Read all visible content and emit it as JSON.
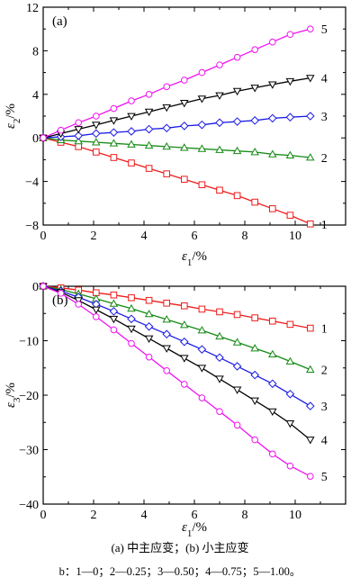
{
  "chart_data": [
    {
      "type": "line",
      "panel_label": "(a)",
      "xlabel": "ε1/%",
      "ylabel": "ε2/%",
      "xlim": [
        0,
        12
      ],
      "ylim": [
        -8,
        12
      ],
      "xticks": [
        "0",
        "2",
        "4",
        "6",
        "8",
        "10"
      ],
      "yticks": [
        "-8",
        "-4",
        "0",
        "4",
        "8",
        "12"
      ],
      "series": [
        {
          "name": "1",
          "color": "#ee1c1c",
          "marker": "square",
          "x": [
            0,
            0.7,
            1.4,
            2.1,
            2.8,
            3.5,
            4.2,
            4.9,
            5.6,
            6.3,
            7.0,
            7.7,
            8.4,
            9.1,
            9.8,
            10.6
          ],
          "y": [
            0,
            -0.4,
            -0.8,
            -1.3,
            -1.8,
            -2.3,
            -2.8,
            -3.3,
            -3.8,
            -4.3,
            -4.8,
            -5.3,
            -5.9,
            -6.5,
            -7.1,
            -7.9
          ]
        },
        {
          "name": "2",
          "color": "#138a13",
          "marker": "triangle-up",
          "x": [
            0,
            0.7,
            1.4,
            2.1,
            2.8,
            3.5,
            4.2,
            4.9,
            5.6,
            6.3,
            7.0,
            7.7,
            8.4,
            9.1,
            9.8,
            10.6
          ],
          "y": [
            0,
            -0.2,
            -0.3,
            -0.4,
            -0.5,
            -0.6,
            -0.7,
            -0.8,
            -0.9,
            -1.0,
            -1.1,
            -1.2,
            -1.3,
            -1.5,
            -1.6,
            -1.8
          ]
        },
        {
          "name": "3",
          "color": "#1a1ae6",
          "marker": "diamond",
          "x": [
            0,
            0.7,
            1.4,
            2.1,
            2.8,
            3.5,
            4.2,
            4.9,
            5.6,
            6.3,
            7.0,
            7.7,
            8.4,
            9.1,
            9.8,
            10.6
          ],
          "y": [
            0,
            0.1,
            0.2,
            0.4,
            0.5,
            0.6,
            0.8,
            0.9,
            1.1,
            1.2,
            1.4,
            1.5,
            1.6,
            1.8,
            1.9,
            2.0
          ]
        },
        {
          "name": "4",
          "color": "#000000",
          "marker": "triangle-down",
          "x": [
            0,
            0.7,
            1.4,
            2.1,
            2.8,
            3.5,
            4.2,
            4.9,
            5.6,
            6.3,
            7.0,
            7.7,
            8.4,
            9.1,
            9.8,
            10.6
          ],
          "y": [
            0,
            0.4,
            0.8,
            1.2,
            1.6,
            2.0,
            2.4,
            2.8,
            3.2,
            3.6,
            3.9,
            4.3,
            4.6,
            4.9,
            5.2,
            5.5
          ]
        },
        {
          "name": "5",
          "color": "#f013f0",
          "marker": "circle",
          "x": [
            0,
            0.7,
            1.4,
            2.1,
            2.8,
            3.5,
            4.2,
            4.9,
            5.6,
            6.3,
            7.0,
            7.7,
            8.4,
            9.1,
            9.8,
            10.6
          ],
          "y": [
            0,
            0.7,
            1.4,
            2.0,
            2.7,
            3.4,
            4.0,
            4.7,
            5.3,
            6.0,
            6.7,
            7.4,
            8.1,
            8.8,
            9.5,
            10.0
          ]
        }
      ]
    },
    {
      "type": "line",
      "panel_label": "(b)",
      "xlabel": "ε1/%",
      "ylabel": "ε3/%",
      "xlim": [
        0,
        12
      ],
      "ylim": [
        -40,
        0
      ],
      "xticks": [
        "0",
        "2",
        "4",
        "6",
        "8",
        "10"
      ],
      "yticks": [
        "-40",
        "-30",
        "-20",
        "-10",
        "0"
      ],
      "series": [
        {
          "name": "1",
          "color": "#ee1c1c",
          "marker": "square",
          "x": [
            0,
            0.7,
            1.4,
            2.1,
            2.8,
            3.5,
            4.2,
            4.9,
            5.6,
            6.3,
            7.0,
            7.7,
            8.4,
            9.1,
            9.8,
            10.6
          ],
          "y": [
            0,
            -0.3,
            -0.7,
            -1.2,
            -1.6,
            -2.1,
            -2.6,
            -3.1,
            -3.6,
            -4.2,
            -4.7,
            -5.2,
            -5.8,
            -6.4,
            -7.0,
            -7.7
          ]
        },
        {
          "name": "2",
          "color": "#138a13",
          "marker": "triangle-up",
          "x": [
            0,
            0.7,
            1.4,
            2.1,
            2.8,
            3.5,
            4.2,
            4.9,
            5.6,
            6.3,
            7.0,
            7.7,
            8.4,
            9.1,
            9.8,
            10.6
          ],
          "y": [
            0,
            -0.6,
            -1.4,
            -2.3,
            -3.2,
            -4.1,
            -5.1,
            -6.1,
            -7.1,
            -8.1,
            -9.2,
            -10.3,
            -11.4,
            -12.5,
            -13.8,
            -15.3
          ]
        },
        {
          "name": "3",
          "color": "#1a1ae6",
          "marker": "diamond",
          "x": [
            0,
            0.7,
            1.4,
            2.1,
            2.8,
            3.5,
            4.2,
            4.9,
            5.6,
            6.3,
            7.0,
            7.7,
            8.4,
            9.1,
            9.8,
            10.6
          ],
          "y": [
            0,
            -0.9,
            -2.0,
            -3.3,
            -4.6,
            -6.0,
            -7.4,
            -8.8,
            -10.2,
            -11.6,
            -13.1,
            -14.7,
            -16.3,
            -17.9,
            -19.8,
            -22.0
          ]
        },
        {
          "name": "4",
          "color": "#000000",
          "marker": "triangle-down",
          "x": [
            0,
            0.7,
            1.4,
            2.1,
            2.8,
            3.5,
            4.2,
            4.9,
            5.6,
            6.3,
            7.0,
            7.7,
            8.4,
            9.1,
            9.8,
            10.6
          ],
          "y": [
            0,
            -1.1,
            -2.6,
            -4.3,
            -6.0,
            -7.8,
            -9.6,
            -11.4,
            -13.2,
            -15.0,
            -17.0,
            -19.0,
            -21.0,
            -23.0,
            -25.2,
            -28.2
          ]
        },
        {
          "name": "5",
          "color": "#f013f0",
          "marker": "circle",
          "x": [
            0,
            0.7,
            1.4,
            2.1,
            2.8,
            3.5,
            4.2,
            4.9,
            5.6,
            6.3,
            7.0,
            7.7,
            8.4,
            9.1,
            9.8,
            10.6
          ],
          "y": [
            0,
            -1.3,
            -3.3,
            -5.6,
            -8.0,
            -10.5,
            -13.0,
            -15.5,
            -18.0,
            -20.5,
            -23.0,
            -25.5,
            -28.2,
            -30.8,
            -33.0,
            -34.9
          ]
        }
      ]
    }
  ],
  "caption": {
    "line1": "(a)  中主应变；(b)  小主应变",
    "line2": "b：1—0；2—0.25；3—0.50；4—0.75；5—1.00。"
  }
}
